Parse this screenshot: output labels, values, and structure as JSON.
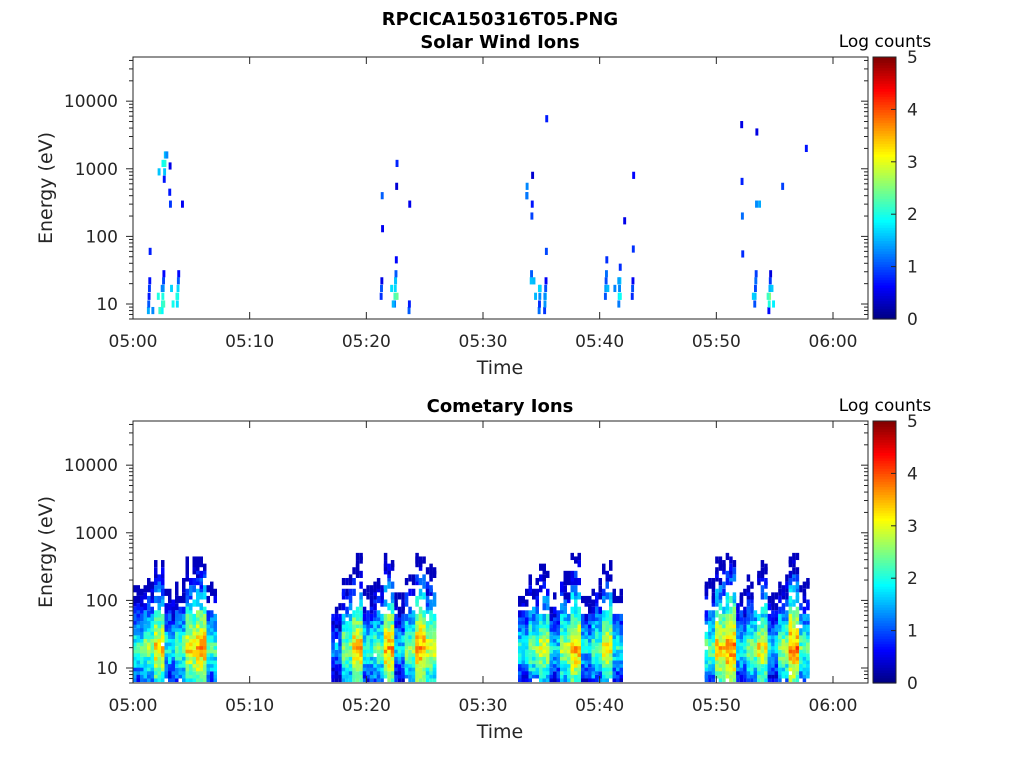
{
  "figure": {
    "title": "RPCICA150316T05.PNG"
  },
  "chart_data": [
    {
      "type": "heatmap",
      "title": "Solar Wind Ions",
      "xlabel": "Time",
      "ylabel": "Energy (eV)",
      "x_ticks": [
        "05:00",
        "05:10",
        "05:20",
        "05:30",
        "05:40",
        "05:50",
        "06:00"
      ],
      "x_range": [
        "05:00",
        "06:03"
      ],
      "y_scale": "log",
      "y_ticks": [
        10,
        100,
        1000,
        10000
      ],
      "y_tick_labels": [
        "10",
        "100",
        "1000",
        "10000"
      ],
      "y_range": [
        6,
        45000
      ],
      "colorbar": {
        "title": "Log counts",
        "range": [
          0,
          5
        ],
        "ticks": [
          0,
          1,
          2,
          3,
          4,
          5
        ],
        "colormap": "jet"
      },
      "grid": false,
      "cells": [
        [
          "05:01",
          8,
          1.5
        ],
        [
          "05:01",
          10,
          1.2
        ],
        [
          "05:01",
          13,
          1.0
        ],
        [
          "05:01",
          17,
          0.7
        ],
        [
          "05:01",
          22,
          0.6
        ],
        [
          "05:01",
          60,
          0.8
        ],
        [
          "05:02",
          8,
          2.0
        ],
        [
          "05:02",
          10,
          2.3
        ],
        [
          "05:02",
          13,
          1.8
        ],
        [
          "05:02",
          17,
          1.3
        ],
        [
          "05:02",
          22,
          1.0
        ],
        [
          "05:02",
          28,
          0.8
        ],
        [
          "05:02",
          700,
          1.0
        ],
        [
          "05:02",
          900,
          1.4
        ],
        [
          "05:02",
          1200,
          2.0
        ],
        [
          "05:02",
          1600,
          1.6
        ],
        [
          "05:03",
          10,
          1.9
        ],
        [
          "05:03",
          13,
          2.2
        ],
        [
          "05:03",
          17,
          1.5
        ],
        [
          "05:03",
          22,
          1.0
        ],
        [
          "05:03",
          28,
          0.7
        ],
        [
          "05:03",
          450,
          0.9
        ],
        [
          "05:03",
          1100,
          0.8
        ],
        [
          "05:03",
          300,
          0.7
        ],
        [
          "05:04",
          300,
          0.5
        ],
        [
          "05:21",
          13,
          0.9
        ],
        [
          "05:21",
          17,
          1.2
        ],
        [
          "05:21",
          22,
          0.8
        ],
        [
          "05:21",
          400,
          0.9
        ],
        [
          "05:21",
          130,
          0.5
        ],
        [
          "05:22",
          10,
          1.3
        ],
        [
          "05:22",
          13,
          2.4
        ],
        [
          "05:22",
          17,
          2.0
        ],
        [
          "05:22",
          22,
          1.5
        ],
        [
          "05:22",
          28,
          1.0
        ],
        [
          "05:22",
          45,
          0.7
        ],
        [
          "05:22",
          550,
          0.6
        ],
        [
          "05:22",
          1200,
          0.5
        ],
        [
          "05:23",
          8,
          0.9
        ],
        [
          "05:23",
          10,
          0.7
        ],
        [
          "05:23",
          300,
          0.6
        ],
        [
          "05:33",
          400,
          1.3
        ],
        [
          "05:33",
          550,
          1.0
        ],
        [
          "05:34",
          8,
          1.0
        ],
        [
          "05:34",
          10,
          0.8
        ],
        [
          "05:34",
          13,
          1.4
        ],
        [
          "05:34",
          17,
          1.8
        ],
        [
          "05:34",
          22,
          1.3
        ],
        [
          "05:34",
          28,
          0.9
        ],
        [
          "05:34",
          200,
          0.9
        ],
        [
          "05:34",
          300,
          0.8
        ],
        [
          "05:34",
          800,
          0.6
        ],
        [
          "05:35",
          8,
          0.6
        ],
        [
          "05:35",
          10,
          1.2
        ],
        [
          "05:35",
          13,
          1.6
        ],
        [
          "05:35",
          17,
          1.1
        ],
        [
          "05:35",
          22,
          0.8
        ],
        [
          "05:35",
          60,
          0.7
        ],
        [
          "05:35",
          5500,
          0.6
        ],
        [
          "05:40",
          13,
          1.0
        ],
        [
          "05:40",
          17,
          1.5
        ],
        [
          "05:40",
          22,
          1.2
        ],
        [
          "05:40",
          28,
          0.9
        ],
        [
          "05:40",
          45,
          0.7
        ],
        [
          "05:41",
          10,
          1.2
        ],
        [
          "05:41",
          13,
          1.9
        ],
        [
          "05:41",
          17,
          1.5
        ],
        [
          "05:41",
          22,
          1.3
        ],
        [
          "05:41",
          35,
          0.7
        ],
        [
          "05:42",
          13,
          0.8
        ],
        [
          "05:42",
          17,
          1.1
        ],
        [
          "05:42",
          22,
          0.8
        ],
        [
          "05:42",
          65,
          0.6
        ],
        [
          "05:42",
          800,
          0.5
        ],
        [
          "05:42",
          170,
          0.5
        ],
        [
          "05:52",
          4500,
          0.6
        ],
        [
          "05:52",
          650,
          1.0
        ],
        [
          "05:52",
          200,
          0.9
        ],
        [
          "05:52",
          55,
          0.7
        ],
        [
          "05:53",
          10,
          1.0
        ],
        [
          "05:53",
          13,
          1.7
        ],
        [
          "05:53",
          17,
          1.2
        ],
        [
          "05:53",
          22,
          0.9
        ],
        [
          "05:53",
          28,
          0.8
        ],
        [
          "05:53",
          300,
          1.3
        ],
        [
          "05:53",
          3500,
          0.6
        ],
        [
          "05:54",
          8,
          0.9
        ],
        [
          "05:54",
          10,
          1.8
        ],
        [
          "05:54",
          13,
          2.4
        ],
        [
          "05:54",
          17,
          1.5
        ],
        [
          "05:54",
          22,
          1.0
        ],
        [
          "05:54",
          28,
          0.7
        ],
        [
          "05:55",
          550,
          0.7
        ],
        [
          "05:57",
          2000,
          0.6
        ]
      ]
    },
    {
      "type": "heatmap",
      "title": "Cometary Ions",
      "xlabel": "Time",
      "ylabel": "Energy (eV)",
      "x_ticks": [
        "05:00",
        "05:10",
        "05:20",
        "05:30",
        "05:40",
        "05:50",
        "06:00"
      ],
      "x_range": [
        "05:00",
        "06:03"
      ],
      "y_scale": "log",
      "y_ticks": [
        10,
        100,
        1000,
        10000
      ],
      "y_tick_labels": [
        "10",
        "100",
        "1000",
        "10000"
      ],
      "y_range": [
        6,
        45000
      ],
      "colorbar": {
        "title": "Log counts",
        "range": [
          0,
          5
        ],
        "ticks": [
          0,
          1,
          2,
          3,
          4,
          5
        ],
        "colormap": "jet"
      },
      "grid": false,
      "bursts": [
        {
          "start": "05:00",
          "end": "05:07",
          "intensity": [
            2.2,
            2.6,
            3.4,
            2.0,
            2.4,
            3.3,
            3.6,
            2.3
          ]
        },
        {
          "start": "05:17",
          "end": "05:26",
          "intensity": [
            1.5,
            2.6,
            3.5,
            2.2,
            2.5,
            3.6,
            1.8,
            2.6,
            3.7,
            3.0
          ]
        },
        {
          "start": "05:33",
          "end": "05:42",
          "intensity": [
            2.0,
            2.6,
            3.0,
            1.8,
            2.8,
            3.6,
            1.9,
            2.4,
            3.2,
            2.0
          ]
        },
        {
          "start": "05:49",
          "end": "05:58",
          "intensity": [
            2.4,
            3.4,
            3.8,
            2.0,
            2.6,
            3.2,
            1.8,
            2.7,
            3.8,
            2.4
          ]
        }
      ]
    }
  ]
}
